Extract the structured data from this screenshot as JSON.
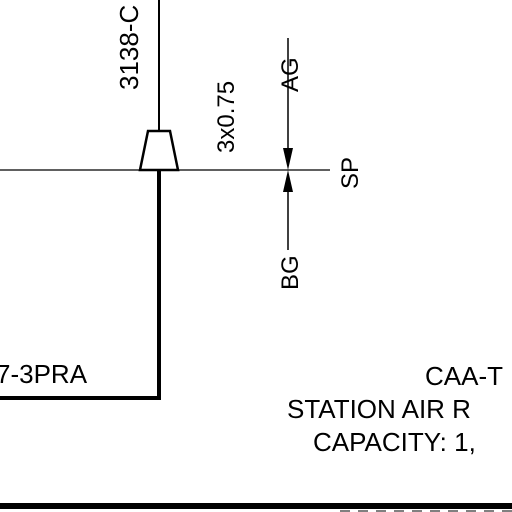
{
  "drawing": {
    "pipe_tag": "3138-C",
    "line_size": "3x0.75",
    "upper_label": "AG",
    "lower_label": "BG",
    "set_pressure_label": "SP",
    "equipment_tag": "7-3PRA",
    "title_block": {
      "line1": "CAA-T",
      "line2": "STATION AIR R",
      "line3": "CAPACITY: 1,"
    }
  }
}
